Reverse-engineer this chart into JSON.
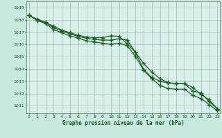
{
  "background_color": "#c8e8e0",
  "plot_bg_color": "#d8f0ec",
  "grid_color": "#c0c0c0",
  "line_color": "#1a6020",
  "marker_color": "#1a6020",
  "xlabel": "Graphe pression niveau de la mer (hPa)",
  "xlabel_color": "#1a5c1a",
  "xlim": [
    -0.3,
    23.3
  ],
  "ylim": [
    1030.4,
    1039.5
  ],
  "yticks": [
    1031,
    1032,
    1033,
    1034,
    1035,
    1036,
    1037,
    1038,
    1039
  ],
  "xticks": [
    0,
    1,
    2,
    3,
    4,
    5,
    6,
    7,
    8,
    9,
    10,
    11,
    12,
    13,
    14,
    15,
    16,
    17,
    18,
    19,
    20,
    21,
    22,
    23
  ],
  "hours": [
    0,
    1,
    2,
    3,
    4,
    5,
    6,
    7,
    8,
    9,
    10,
    11,
    12,
    13,
    14,
    15,
    16,
    17,
    18,
    19,
    20,
    21,
    22,
    23
  ],
  "line1": [
    1038.35,
    1038.0,
    1037.75,
    1037.5,
    1037.15,
    1036.95,
    1036.75,
    1036.6,
    1036.55,
    1036.55,
    1036.7,
    1036.65,
    1036.05,
    1035.35,
    1033.95,
    1033.3,
    1033.0,
    1032.85,
    1032.8,
    1032.8,
    1032.5,
    1031.9,
    1031.5,
    1030.75
  ],
  "line2": [
    1038.35,
    1038.05,
    1037.8,
    1037.35,
    1037.1,
    1036.85,
    1036.65,
    1036.5,
    1036.4,
    1036.35,
    1036.35,
    1036.45,
    1036.35,
    1035.35,
    1034.45,
    1033.75,
    1033.2,
    1032.9,
    1032.8,
    1032.8,
    1032.2,
    1032.05,
    1031.35,
    1030.75
  ],
  "line3": [
    1038.35,
    1037.95,
    1037.7,
    1037.2,
    1036.95,
    1036.7,
    1036.5,
    1036.3,
    1036.2,
    1036.1,
    1036.0,
    1036.1,
    1035.9,
    1035.0,
    1033.9,
    1033.2,
    1032.65,
    1032.4,
    1032.35,
    1032.35,
    1031.85,
    1031.6,
    1031.1,
    1030.6
  ]
}
